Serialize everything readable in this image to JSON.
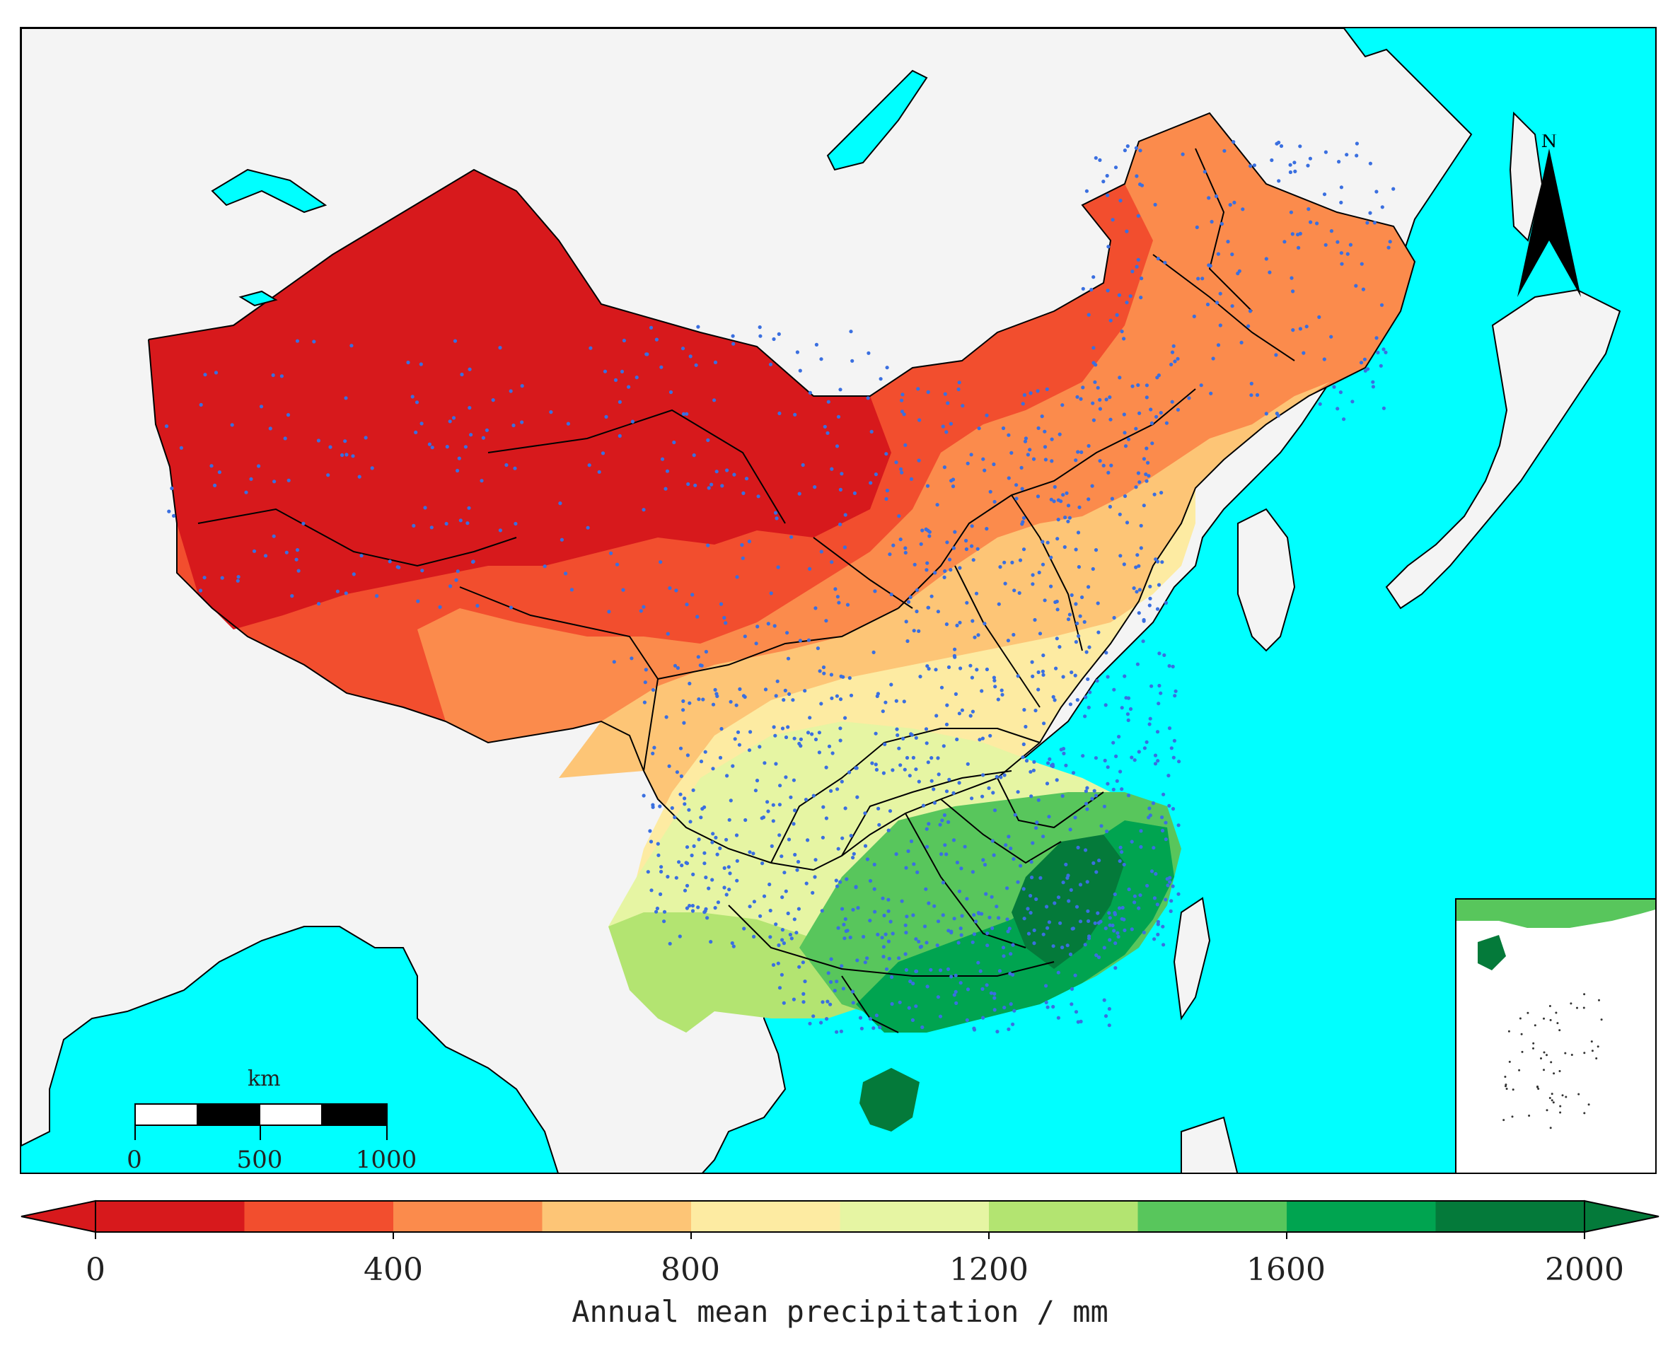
{
  "map": {
    "ocean_color": "#00ffff",
    "land_color": "#f4f4f4",
    "station_color": "#3a6fe0"
  },
  "legend": {
    "title": "Annual mean precipitation / mm",
    "tick_labels": [
      "0",
      "400",
      "800",
      "1200",
      "1600",
      "2000"
    ],
    "min": 0,
    "max": 2000,
    "step": 200,
    "bins": [
      {
        "from": 0,
        "to": 200,
        "color": "#d7191c"
      },
      {
        "from": 200,
        "to": 400,
        "color": "#f24e2e"
      },
      {
        "from": 400,
        "to": 600,
        "color": "#fb8b4c"
      },
      {
        "from": 600,
        "to": 800,
        "color": "#fdc576"
      },
      {
        "from": 800,
        "to": 1000,
        "color": "#fdeba2"
      },
      {
        "from": 1000,
        "to": 1200,
        "color": "#e6f5a3"
      },
      {
        "from": 1200,
        "to": 1400,
        "color": "#b3e471"
      },
      {
        "from": 1400,
        "to": 1600,
        "color": "#58c65c"
      },
      {
        "from": 1600,
        "to": 1800,
        "color": "#00a450"
      },
      {
        "from": 1800,
        "to": 2000,
        "color": "#047a3a"
      }
    ],
    "under_color": "#d7191c",
    "over_color": "#047a3a"
  },
  "scalebar": {
    "unit": "km",
    "labels": [
      "0",
      "500",
      "1000"
    ]
  },
  "north_arrow": {
    "label": "N"
  }
}
